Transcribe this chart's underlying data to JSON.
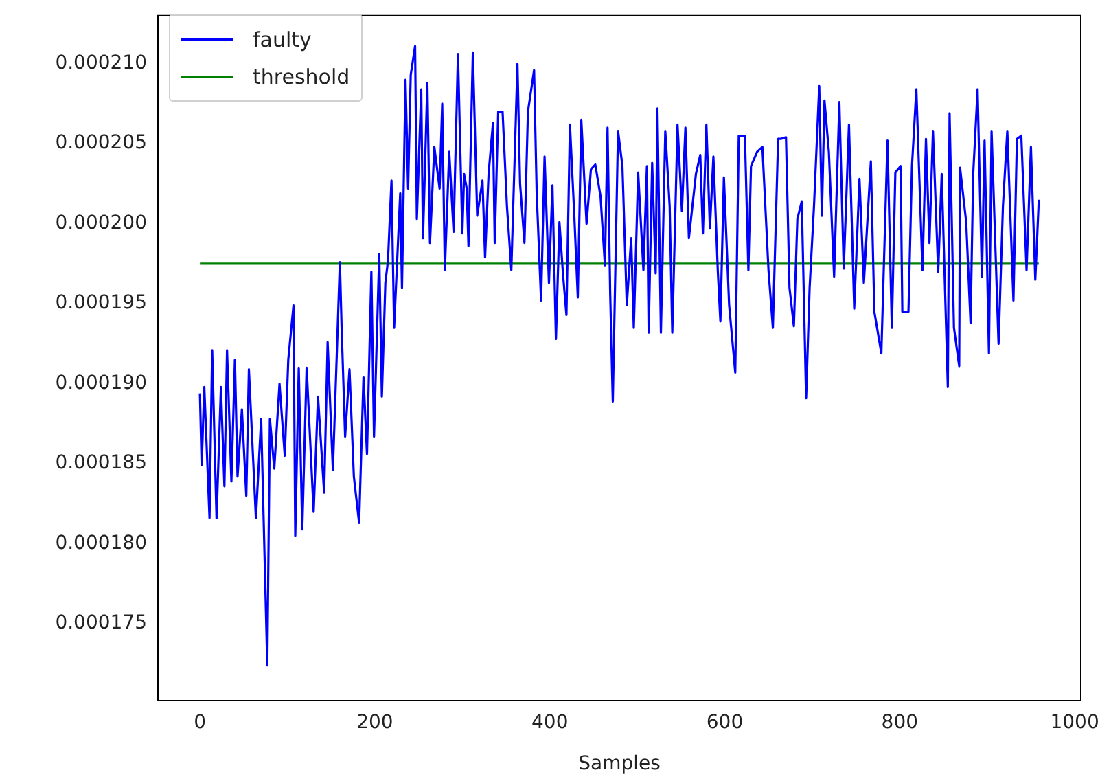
{
  "chart_data": {
    "type": "line",
    "xlabel": "Samples",
    "legend": "top left",
    "grid": false,
    "marker": "none",
    "line_style": "solid",
    "xlim": [
      -48,
      1007
    ],
    "xticks": [
      0,
      200,
      400,
      600,
      800,
      1000
    ],
    "ylim": [
      0.0001702,
      0.000213
    ],
    "yticks": [
      0.000175,
      {
        "value": 0.00018,
        "label": "0.000180"
      },
      0.000185,
      {
        "value": 0.00019,
        "label": "0.000190"
      },
      0.000195,
      {
        "value": 0.0002,
        "label": "0.000200"
      },
      0.000205,
      {
        "value": 0.00021,
        "label": "0.000210"
      }
    ],
    "series": [
      {
        "name": "faulty",
        "color": "#0000ff",
        "x": [
          0,
          2,
          5,
          11,
          14,
          19,
          24,
          28,
          31,
          36,
          40,
          43,
          48,
          53,
          56,
          64,
          70,
          77,
          80,
          85,
          91,
          97,
          101,
          107,
          109,
          113,
          117,
          122,
          130,
          135,
          142,
          146,
          152,
          160,
          162,
          166,
          171,
          176,
          182,
          187,
          191,
          196,
          199,
          205,
          208,
          212,
          215,
          219,
          222,
          229,
          231,
          235,
          238,
          241,
          246,
          248,
          253,
          255,
          260,
          263,
          268,
          274,
          277,
          280,
          285,
          290,
          295,
          300,
          302,
          305,
          307,
          312,
          317,
          323,
          326,
          330,
          335,
          337,
          341,
          346,
          351,
          356,
          363,
          366,
          371,
          375,
          382,
          385,
          390,
          394,
          399,
          403,
          407,
          411,
          415,
          419,
          423,
          428,
          432,
          436,
          442,
          447,
          452,
          458,
          463,
          466,
          469,
          472,
          478,
          483,
          488,
          493,
          496,
          501,
          507,
          511,
          513,
          517,
          521,
          523,
          527,
          532,
          537,
          540,
          546,
          551,
          555,
          559,
          567,
          572,
          575,
          579,
          583,
          587,
          592,
          595,
          599,
          605,
          612,
          616,
          623,
          627,
          630,
          637,
          643,
          650,
          655,
          661,
          664,
          670,
          674,
          679,
          683,
          688,
          693,
          697,
          702,
          708,
          711,
          714,
          719,
          725,
          731,
          736,
          742,
          748,
          754,
          759,
          767,
          771,
          779,
          786,
          791,
          795,
          801,
          803,
          810,
          814,
          819,
          826,
          830,
          834,
          838,
          844,
          848,
          855,
          857,
          862,
          868,
          869,
          876,
          881,
          884,
          889,
          894,
          897,
          902,
          905,
          913,
          918,
          923,
          930,
          934,
          939,
          945,
          950,
          955,
          959
        ],
        "values": [
          0.0001894,
          0.0001849,
          0.0001898,
          0.0001816,
          0.0001921,
          0.0001816,
          0.0001898,
          0.0001836,
          0.0001921,
          0.0001839,
          0.0001915,
          0.0001842,
          0.0001884,
          0.000183,
          0.0001909,
          0.0001816,
          0.0001878,
          0.0001724,
          0.0001878,
          0.0001847,
          0.00019,
          0.0001855,
          0.0001915,
          0.0001949,
          0.0001805,
          0.000191,
          0.0001809,
          0.000191,
          0.000182,
          0.0001892,
          0.0001832,
          0.0001926,
          0.0001846,
          0.0001976,
          0.0001935,
          0.0001867,
          0.0001909,
          0.0001842,
          0.0001813,
          0.0001904,
          0.0001856,
          0.000197,
          0.0001867,
          0.0001981,
          0.0001892,
          0.0001963,
          0.0001977,
          0.0002027,
          0.0001935,
          0.0002019,
          0.000196,
          0.000209,
          0.0002022,
          0.0002093,
          0.0002111,
          0.0002003,
          0.0002084,
          0.0001991,
          0.0002088,
          0.0001988,
          0.0002048,
          0.0002022,
          0.0002075,
          0.0001971,
          0.0002045,
          0.0001995,
          0.0002106,
          0.0001994,
          0.0002031,
          0.0002022,
          0.0001986,
          0.0002107,
          0.0002005,
          0.0002027,
          0.0001979,
          0.0002031,
          0.0002063,
          0.0001988,
          0.000207,
          0.000207,
          0.0002011,
          0.0001971,
          0.00021,
          0.0002025,
          0.0001988,
          0.000207,
          0.0002096,
          0.0002019,
          0.0001952,
          0.0002042,
          0.0001963,
          0.0002024,
          0.0001928,
          0.0002001,
          0.0001969,
          0.0001943,
          0.0002062,
          0.0002005,
          0.0001954,
          0.0002065,
          0.0002,
          0.0002034,
          0.0002037,
          0.0002017,
          0.0001974,
          0.000206,
          0.0001957,
          0.0001889,
          0.0002058,
          0.0002036,
          0.0001949,
          0.0001991,
          0.0001935,
          0.0002032,
          0.0001971,
          0.0002036,
          0.0001932,
          0.0002038,
          0.0001969,
          0.0002072,
          0.0001932,
          0.0002058,
          0.0002011,
          0.0001932,
          0.0002062,
          0.0002008,
          0.000206,
          0.0001991,
          0.0002031,
          0.0002043,
          0.0001994,
          0.0002062,
          0.0001997,
          0.0002042,
          0.0001971,
          0.0001939,
          0.0002029,
          0.0001949,
          0.0001907,
          0.0002055,
          0.0002055,
          0.0001971,
          0.0002036,
          0.0002045,
          0.0002048,
          0.0001971,
          0.0001935,
          0.0002053,
          0.0002053,
          0.0002054,
          0.000196,
          0.0001936,
          0.0002003,
          0.0002014,
          0.0001891,
          0.000196,
          0.0002011,
          0.0002086,
          0.0002005,
          0.0002077,
          0.0002045,
          0.0001967,
          0.0002076,
          0.0001972,
          0.0002062,
          0.0001947,
          0.0002028,
          0.0001963,
          0.0002039,
          0.0001945,
          0.0001919,
          0.0002052,
          0.0001935,
          0.0002032,
          0.0002036,
          0.0001945,
          0.0001945,
          0.0002036,
          0.0002084,
          0.0001971,
          0.0002053,
          0.0001988,
          0.0002058,
          0.000197,
          0.0002031,
          0.0001898,
          0.0002069,
          0.0001935,
          0.0001911,
          0.0002035,
          0.0002001,
          0.0001938,
          0.0002031,
          0.0002084,
          0.0001967,
          0.0002052,
          0.0001919,
          0.0002058,
          0.0001925,
          0.0002011,
          0.0002058,
          0.0001952,
          0.0002053,
          0.0002055,
          0.0001971,
          0.0002048,
          0.0001965,
          0.0002015
        ]
      },
      {
        "name": "threshold",
        "color": "#008000",
        "x": [
          0,
          959
        ],
        "values": [
          0.0001975,
          0.0001975
        ]
      }
    ]
  }
}
